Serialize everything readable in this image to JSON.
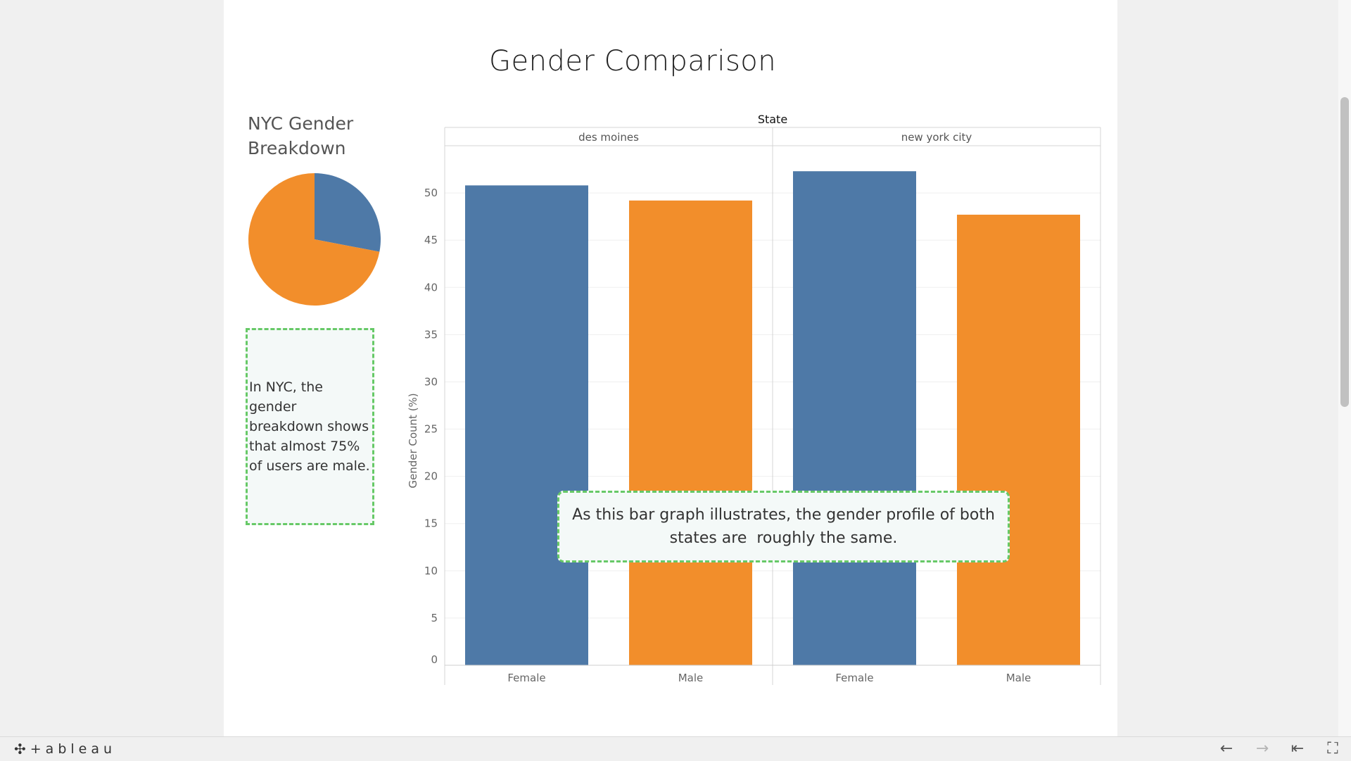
{
  "dashboard": {
    "title": "Gender Comparison"
  },
  "pie_panel": {
    "title": "NYC Gender Breakdown",
    "note": "In NYC, the gender breakdown shows that almost 75% of users are male."
  },
  "bar_panel": {
    "note": "As this bar graph illustrates, the gender profile of both states are  roughly the same."
  },
  "colors": {
    "female": "#4e79a7",
    "male": "#f28e2b"
  },
  "chart_data": [
    {
      "type": "pie",
      "title": "NYC Gender Breakdown",
      "slices": [
        {
          "category": "Female",
          "value": 28,
          "color": "#4e79a7"
        },
        {
          "category": "Male",
          "value": 72,
          "color": "#f28e2b"
        }
      ]
    },
    {
      "type": "bar",
      "column_header_title": "State",
      "panes": [
        "des moines",
        "new york city"
      ],
      "categories": [
        "Female",
        "Male"
      ],
      "values": [
        [
          50.8,
          49.2
        ],
        [
          52.3,
          47.7
        ]
      ],
      "colors": [
        "#4e79a7",
        "#f28e2b"
      ],
      "ylabel": "Gender Count (%)",
      "ylim": [
        0,
        55
      ],
      "yticks": [
        0,
        5,
        10,
        15,
        20,
        25,
        30,
        35,
        40,
        45,
        50
      ],
      "grid": true
    }
  ],
  "footer": {
    "logo_text": "+ableau",
    "logo_mark": "✣",
    "back_icon": "←",
    "forward_icon": "→",
    "first_icon": "⇤",
    "fullscreen_icon": "⛶"
  }
}
